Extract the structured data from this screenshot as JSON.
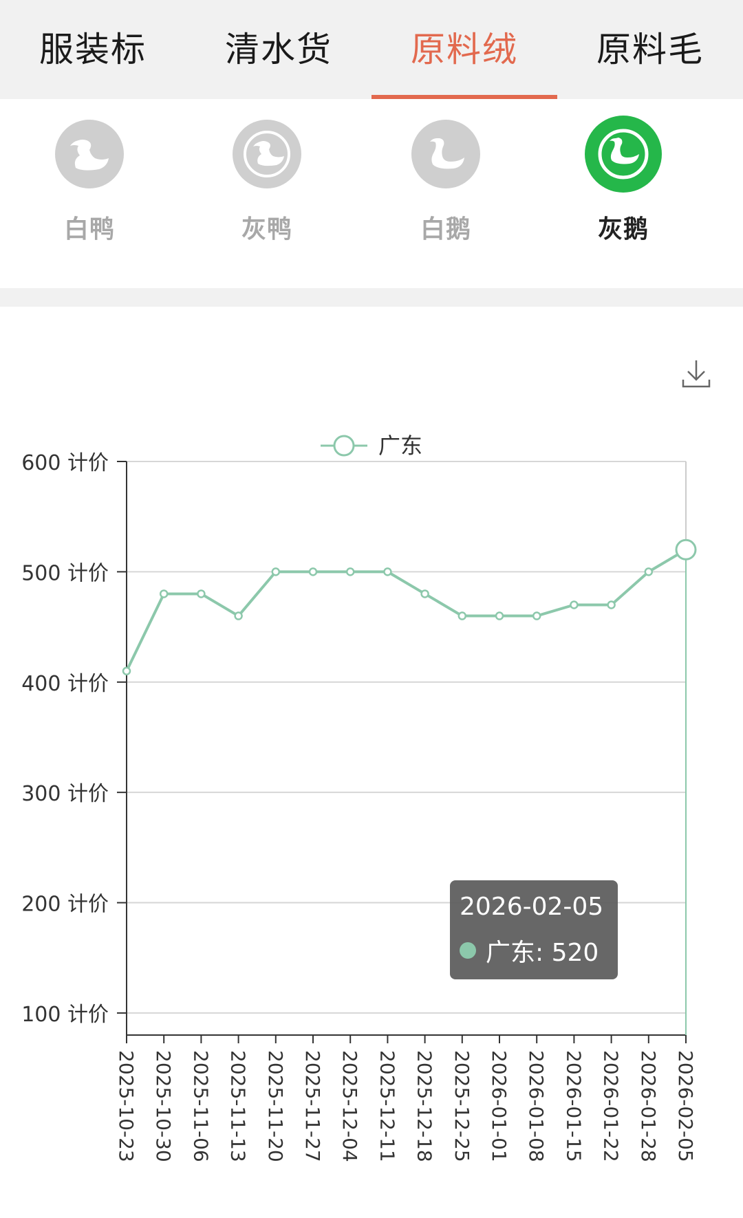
{
  "top_tabs": [
    {
      "label": "服装标"
    },
    {
      "label": "清水货"
    },
    {
      "label": "原料绒"
    },
    {
      "label": "原料毛"
    }
  ],
  "categories": [
    {
      "label": "白鸭",
      "icon": "duck-icon"
    },
    {
      "label": "灰鸭",
      "icon": "duck-icon"
    },
    {
      "label": "白鹅",
      "icon": "goose-icon"
    },
    {
      "label": "灰鹅",
      "icon": "goose-icon"
    }
  ],
  "colors": {
    "accent": "#e2694e",
    "series": "#8cc8ab",
    "active_category": "#25b74a"
  },
  "tooltip": {
    "date": "2026-02-05",
    "text": "广东: 520"
  },
  "chart_data": {
    "type": "line",
    "legend": [
      "广东"
    ],
    "legend_position": "top-center",
    "y_unit_suffix": "计价",
    "ylim": [
      80,
      600
    ],
    "yticks": [
      100,
      200,
      300,
      400,
      500,
      600
    ],
    "grid": true,
    "x": [
      "2025-10-23",
      "2025-10-30",
      "2025-11-06",
      "2025-11-13",
      "2025-11-20",
      "2025-11-27",
      "2025-12-04",
      "2025-12-11",
      "2025-12-18",
      "2025-12-25",
      "2026-01-01",
      "2026-01-08",
      "2026-01-15",
      "2026-01-22",
      "2026-01-28",
      "2026-02-05"
    ],
    "series": [
      {
        "name": "广东",
        "values": [
          410,
          480,
          480,
          460,
          500,
          500,
          500,
          500,
          480,
          460,
          460,
          460,
          470,
          470,
          500,
          520
        ]
      }
    ]
  }
}
